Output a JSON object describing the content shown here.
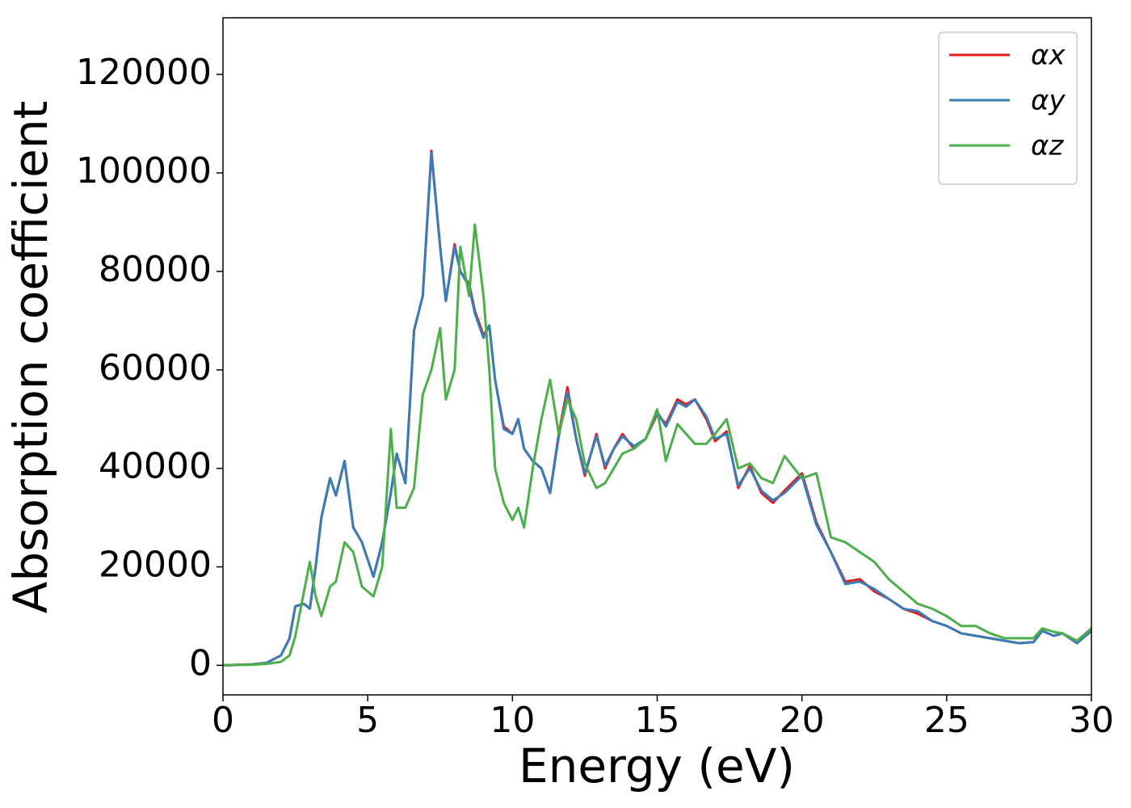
{
  "chart_data": {
    "type": "line",
    "xlabel": "Energy (eV)",
    "ylabel": "Absorption coefficient",
    "x": [
      0,
      1,
      1.5,
      2,
      2.3,
      2.5,
      2.8,
      3.0,
      3.2,
      3.4,
      3.7,
      3.9,
      4.2,
      4.5,
      4.8,
      5.2,
      5.5,
      5.8,
      6.0,
      6.3,
      6.6,
      6.9,
      7.2,
      7.5,
      7.7,
      8.0,
      8.2,
      8.5,
      8.7,
      9.0,
      9.2,
      9.4,
      9.7,
      10.0,
      10.2,
      10.4,
      10.7,
      11.0,
      11.3,
      11.6,
      11.9,
      12.2,
      12.5,
      12.9,
      13.2,
      13.5,
      13.8,
      14.2,
      14.6,
      15.0,
      15.3,
      15.7,
      16.0,
      16.3,
      16.7,
      17.0,
      17.4,
      17.8,
      18.2,
      18.6,
      19.0,
      19.4,
      20.0,
      20.5,
      21.0,
      21.5,
      22.0,
      22.5,
      23.0,
      23.5,
      24.0,
      24.5,
      25.0,
      25.5,
      26.0,
      26.5,
      27.0,
      27.5,
      28.0,
      28.3,
      28.7,
      29.0,
      29.5,
      30.0
    ],
    "series": [
      {
        "name": "αx",
        "color": "#e41a1c",
        "values": [
          0,
          200,
          500,
          2000,
          5500,
          12000,
          12500,
          11500,
          20000,
          30000,
          38000,
          34500,
          41500,
          28000,
          25000,
          18000,
          25000,
          35000,
          43000,
          37000,
          68000,
          75000,
          104500,
          85000,
          74000,
          85500,
          80000,
          77500,
          72000,
          67000,
          69000,
          58000,
          48500,
          47000,
          50000,
          44000,
          41500,
          40000,
          35000,
          47000,
          56500,
          46000,
          38500,
          47000,
          40000,
          44000,
          47000,
          44000,
          46000,
          51000,
          49000,
          54000,
          53000,
          54000,
          50000,
          45500,
          47500,
          36000,
          40500,
          35000,
          33000,
          35500,
          39000,
          29000,
          23000,
          17000,
          17500,
          15000,
          13500,
          11500,
          10500,
          9000,
          8000,
          6500,
          6000,
          5500,
          5000,
          4500,
          4700,
          7000,
          6000,
          6500,
          4500,
          7000
        ]
      },
      {
        "name": "αy",
        "color": "#377eb8",
        "values": [
          0,
          200,
          500,
          2000,
          5500,
          12000,
          12500,
          11500,
          20000,
          30000,
          38000,
          34500,
          41500,
          28000,
          25000,
          18000,
          25000,
          35000,
          43000,
          37000,
          68000,
          75000,
          104000,
          85000,
          74000,
          85000,
          80000,
          77000,
          71500,
          66500,
          69000,
          58000,
          48000,
          47000,
          50000,
          44000,
          41500,
          40000,
          35000,
          46500,
          55500,
          46000,
          39000,
          46500,
          40500,
          44000,
          46500,
          44500,
          46000,
          51500,
          48500,
          53500,
          52500,
          54000,
          50500,
          46000,
          47000,
          36500,
          40000,
          35500,
          33500,
          35000,
          38500,
          28500,
          23000,
          16500,
          17000,
          15500,
          13500,
          11500,
          11000,
          9000,
          8000,
          6500,
          6000,
          5500,
          5000,
          4500,
          4700,
          7000,
          6000,
          6500,
          4500,
          7000
        ]
      },
      {
        "name": "αz",
        "color": "#4daf4a",
        "values": [
          0,
          100,
          300,
          700,
          2000,
          6000,
          15000,
          21000,
          14000,
          10000,
          16000,
          17000,
          25000,
          23000,
          16000,
          14000,
          20000,
          48000,
          32000,
          32000,
          36000,
          55000,
          60000,
          68500,
          54000,
          60000,
          85000,
          75000,
          89500,
          75000,
          60000,
          40000,
          33000,
          29500,
          32000,
          28000,
          40000,
          50000,
          58000,
          47000,
          54000,
          50000,
          41000,
          36000,
          37000,
          40000,
          43000,
          44000,
          46000,
          52000,
          41500,
          49000,
          47000,
          45000,
          45000,
          47000,
          50000,
          40000,
          41000,
          38000,
          37000,
          42500,
          38000,
          39000,
          26000,
          25000,
          23000,
          21000,
          17500,
          15000,
          12500,
          11500,
          10000,
          8000,
          8000,
          6500,
          5500,
          5500,
          5500,
          7500,
          6800,
          6500,
          5000,
          7500
        ]
      }
    ],
    "xlim": [
      0,
      30
    ],
    "xticks": [
      0,
      5,
      10,
      15,
      20,
      25,
      30
    ],
    "ylim": [
      -6000,
      131500
    ],
    "yticks": [
      0,
      20000,
      40000,
      60000,
      80000,
      100000,
      120000
    ],
    "legend": "upper right"
  }
}
